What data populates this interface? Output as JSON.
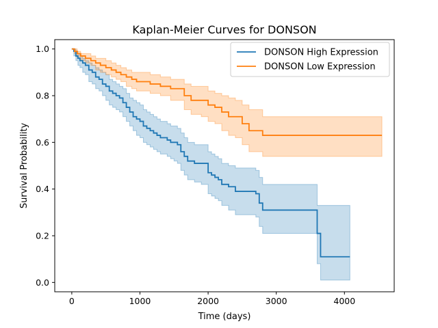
{
  "chart_data": {
    "type": "line",
    "title": "Kaplan-Meier Curves for DONSON",
    "xlabel": "Time (days)",
    "ylabel": "Survival Probability",
    "xlim": [
      -250,
      4730
    ],
    "ylim": [
      -0.04,
      1.04
    ],
    "x_ticks": [
      0,
      1000,
      2000,
      3000,
      4000
    ],
    "x_tick_labels": [
      "0",
      "1000",
      "2000",
      "3000",
      "4000"
    ],
    "y_ticks": [
      0.0,
      0.2,
      0.4,
      0.6,
      0.8,
      1.0
    ],
    "y_tick_labels": [
      "0.0",
      "0.2",
      "0.4",
      "0.6",
      "0.8",
      "1.0"
    ],
    "grid": false,
    "legend_position": "top-right",
    "step": "post",
    "series": [
      {
        "name": "DONSON High Expression",
        "color": "#1f77b4",
        "x": [
          0,
          30,
          60,
          90,
          120,
          160,
          200,
          250,
          300,
          350,
          400,
          450,
          500,
          550,
          600,
          650,
          700,
          750,
          800,
          850,
          900,
          950,
          1000,
          1050,
          1100,
          1150,
          1200,
          1250,
          1300,
          1350,
          1400,
          1450,
          1500,
          1550,
          1600,
          1650,
          1700,
          1800,
          1900,
          2000,
          2050,
          2100,
          2150,
          2200,
          2300,
          2400,
          2700,
          2750,
          2800,
          3550,
          3600,
          3650,
          4080
        ],
        "y": [
          1.0,
          0.99,
          0.97,
          0.96,
          0.95,
          0.94,
          0.93,
          0.91,
          0.9,
          0.88,
          0.87,
          0.85,
          0.84,
          0.82,
          0.81,
          0.8,
          0.79,
          0.77,
          0.75,
          0.73,
          0.71,
          0.7,
          0.69,
          0.67,
          0.66,
          0.65,
          0.64,
          0.63,
          0.62,
          0.62,
          0.61,
          0.6,
          0.6,
          0.59,
          0.56,
          0.54,
          0.52,
          0.51,
          0.51,
          0.47,
          0.46,
          0.45,
          0.44,
          0.42,
          0.41,
          0.39,
          0.38,
          0.34,
          0.31,
          0.31,
          0.21,
          0.11,
          0.11
        ],
        "ci_lower": [
          1.0,
          0.97,
          0.95,
          0.93,
          0.92,
          0.9,
          0.89,
          0.86,
          0.85,
          0.83,
          0.82,
          0.8,
          0.78,
          0.76,
          0.75,
          0.74,
          0.73,
          0.71,
          0.69,
          0.67,
          0.65,
          0.63,
          0.62,
          0.6,
          0.59,
          0.58,
          0.57,
          0.56,
          0.55,
          0.55,
          0.54,
          0.53,
          0.52,
          0.51,
          0.48,
          0.46,
          0.44,
          0.43,
          0.42,
          0.38,
          0.37,
          0.36,
          0.35,
          0.33,
          0.31,
          0.29,
          0.28,
          0.24,
          0.21,
          0.21,
          0.08,
          0.01,
          0.01
        ],
        "ci_upper": [
          1.0,
          1.0,
          0.99,
          0.98,
          0.97,
          0.96,
          0.95,
          0.94,
          0.93,
          0.92,
          0.91,
          0.9,
          0.89,
          0.87,
          0.86,
          0.85,
          0.84,
          0.83,
          0.81,
          0.79,
          0.78,
          0.77,
          0.76,
          0.74,
          0.73,
          0.72,
          0.71,
          0.7,
          0.69,
          0.69,
          0.68,
          0.67,
          0.67,
          0.66,
          0.64,
          0.62,
          0.6,
          0.59,
          0.59,
          0.56,
          0.55,
          0.54,
          0.53,
          0.51,
          0.5,
          0.49,
          0.48,
          0.45,
          0.42,
          0.42,
          0.33,
          0.33,
          0.33
        ]
      },
      {
        "name": "DONSON Low Expression",
        "color": "#ff7f0e",
        "x": [
          0,
          40,
          80,
          130,
          200,
          280,
          350,
          420,
          500,
          580,
          650,
          720,
          800,
          880,
          950,
          1050,
          1150,
          1300,
          1450,
          1600,
          1650,
          1750,
          1900,
          2000,
          2100,
          2200,
          2300,
          2400,
          2500,
          2600,
          2800,
          4550
        ],
        "y": [
          1.0,
          0.99,
          0.98,
          0.97,
          0.96,
          0.95,
          0.94,
          0.93,
          0.92,
          0.91,
          0.9,
          0.89,
          0.88,
          0.87,
          0.86,
          0.86,
          0.85,
          0.84,
          0.83,
          0.83,
          0.8,
          0.78,
          0.78,
          0.76,
          0.75,
          0.73,
          0.71,
          0.71,
          0.68,
          0.65,
          0.63,
          0.63
        ],
        "ci_lower": [
          1.0,
          0.98,
          0.96,
          0.95,
          0.94,
          0.93,
          0.91,
          0.9,
          0.89,
          0.88,
          0.87,
          0.86,
          0.84,
          0.83,
          0.82,
          0.82,
          0.81,
          0.8,
          0.78,
          0.78,
          0.74,
          0.72,
          0.71,
          0.69,
          0.68,
          0.65,
          0.63,
          0.62,
          0.59,
          0.56,
          0.54,
          0.54
        ],
        "ci_upper": [
          1.0,
          1.0,
          0.99,
          0.98,
          0.98,
          0.97,
          0.96,
          0.96,
          0.95,
          0.94,
          0.93,
          0.92,
          0.91,
          0.9,
          0.9,
          0.9,
          0.89,
          0.88,
          0.87,
          0.87,
          0.85,
          0.84,
          0.84,
          0.82,
          0.81,
          0.8,
          0.79,
          0.78,
          0.76,
          0.74,
          0.71,
          0.71
        ]
      }
    ]
  }
}
